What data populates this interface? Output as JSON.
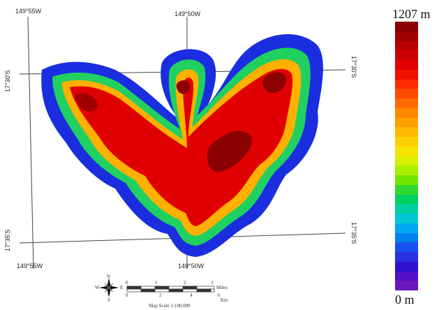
{
  "map": {
    "coords": {
      "top_left": "149°55W",
      "top_center": "149°50W",
      "bottom_left": "149°55W",
      "bottom_center": "149°50W",
      "left_upper": "17°30'S",
      "left_lower": "17°35'S",
      "right_upper": "17°30'S",
      "right_lower": "17°35'S"
    },
    "legend": {
      "max_label": "1207 m",
      "min_label": "0 m",
      "colors": [
        "#8b0000",
        "#a00000",
        "#b80000",
        "#cc0000",
        "#e00000",
        "#f01000",
        "#ff2a00",
        "#ff4a00",
        "#ff6a00",
        "#ff8800",
        "#ffa000",
        "#ffb800",
        "#ffd000",
        "#f6e400",
        "#d8f000",
        "#a8f000",
        "#70e600",
        "#30d830",
        "#00d060",
        "#00d0a0",
        "#00c8d8",
        "#00a8f0",
        "#0080f0",
        "#1850f0",
        "#2830e0",
        "#3010d0",
        "#5010c8",
        "#6a18c0"
      ]
    },
    "scale_bar": {
      "miles_ticks": [
        "0",
        "1",
        "2",
        "3"
      ],
      "miles_unit": "Miles",
      "km_ticks": [
        "0",
        "2",
        "4",
        "6"
      ],
      "km_unit": "Km",
      "scale_text": "Map Scale 1:100,000"
    },
    "north_arrow": {
      "n": "N",
      "s": "S",
      "e": "E",
      "w": "W"
    }
  }
}
